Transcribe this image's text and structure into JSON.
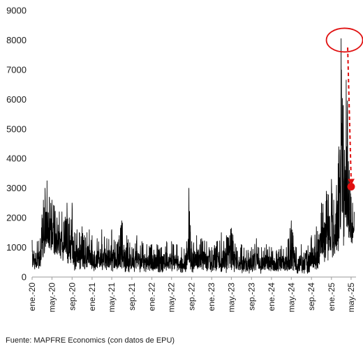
{
  "chart_data": {
    "type": "line",
    "title": "",
    "xlabel": "",
    "ylabel": "",
    "ylim": [
      0,
      9000
    ],
    "yticks": [
      0,
      1000,
      2000,
      3000,
      4000,
      5000,
      6000,
      7000,
      8000,
      9000
    ],
    "xlim": [
      "2020-01-01",
      "2025-05-31"
    ],
    "xticks": [
      {
        "label": "ene.-20",
        "date": "2020-01-01"
      },
      {
        "label": "may.-20",
        "date": "2020-05-01"
      },
      {
        "label": "sep.-20",
        "date": "2020-09-01"
      },
      {
        "label": "ene.-21",
        "date": "2021-01-01"
      },
      {
        "label": "may.-21",
        "date": "2021-05-01"
      },
      {
        "label": "sep.-21",
        "date": "2021-09-01"
      },
      {
        "label": "ene.-22",
        "date": "2022-01-01"
      },
      {
        "label": "may.-22",
        "date": "2022-05-01"
      },
      {
        "label": "sep.-22",
        "date": "2022-09-01"
      },
      {
        "label": "ene.-23",
        "date": "2023-01-01"
      },
      {
        "label": "may.-23",
        "date": "2023-05-01"
      },
      {
        "label": "sep.-23",
        "date": "2023-09-01"
      },
      {
        "label": "ene.-24",
        "date": "2024-01-01"
      },
      {
        "label": "may.-24",
        "date": "2024-05-01"
      },
      {
        "label": "sep.-24",
        "date": "2024-09-01"
      },
      {
        "label": "ene.-25",
        "date": "2025-01-01"
      },
      {
        "label": "may.-25",
        "date": "2025-05-01"
      }
    ],
    "grid": false,
    "legend": "none",
    "series_color": "#000000",
    "series": [
      {
        "x": [
          "2020-01-01",
          "2020-02-01",
          "2020-02-20",
          "2020-03-01",
          "2020-03-10",
          "2020-03-20",
          "2020-04-01",
          "2020-04-15",
          "2020-05-01",
          "2020-05-15",
          "2020-06-01",
          "2020-06-15",
          "2020-07-01",
          "2020-07-15",
          "2020-08-01",
          "2020-08-15",
          "2020-09-01",
          "2020-09-15",
          "2020-10-01",
          "2020-10-15",
          "2020-11-01",
          "2020-11-15",
          "2020-12-01",
          "2020-12-15",
          "2021-01-01",
          "2021-02-01",
          "2021-03-01",
          "2021-04-01",
          "2021-05-01",
          "2021-06-01",
          "2021-07-01",
          "2021-08-01",
          "2021-09-01",
          "2021-10-01",
          "2021-11-01",
          "2021-12-01",
          "2022-01-01",
          "2022-02-01",
          "2022-03-01",
          "2022-04-01",
          "2022-05-01",
          "2022-06-01",
          "2022-07-01",
          "2022-08-01",
          "2022-08-15",
          "2022-09-01",
          "2022-10-01",
          "2022-11-01",
          "2022-12-01",
          "2023-01-01",
          "2023-02-01",
          "2023-03-01",
          "2023-04-01",
          "2023-05-01",
          "2023-06-01",
          "2023-07-01",
          "2023-08-01",
          "2023-09-01",
          "2023-10-01",
          "2023-11-01",
          "2023-12-01",
          "2024-01-01",
          "2024-02-01",
          "2024-03-01",
          "2024-04-01",
          "2024-05-01",
          "2024-06-01",
          "2024-07-01",
          "2024-08-01",
          "2024-09-01",
          "2024-10-01",
          "2024-11-01",
          "2024-12-01",
          "2025-01-01",
          "2025-01-15",
          "2025-02-01",
          "2025-02-15",
          "2025-03-01",
          "2025-03-15",
          "2025-04-01",
          "2025-04-05",
          "2025-04-09",
          "2025-04-15",
          "2025-04-20",
          "2025-05-01",
          "2025-05-10",
          "2025-05-20"
        ],
        "high": [
          1250,
          1200,
          1300,
          2100,
          2600,
          3000,
          3250,
          2700,
          2600,
          2400,
          2000,
          2200,
          2200,
          1900,
          2500,
          2000,
          2500,
          1500,
          1600,
          1500,
          1700,
          1400,
          1500,
          1600,
          1400,
          1300,
          1600,
          1300,
          1600,
          1100,
          1900,
          1400,
          1000,
          1400,
          1200,
          1100,
          1100,
          1100,
          1000,
          1200,
          1200,
          1100,
          1000,
          1200,
          3000,
          1200,
          1400,
          1300,
          1200,
          1000,
          1200,
          1500,
          1400,
          1650,
          1000,
          1100,
          900,
          1000,
          1300,
          1000,
          1100,
          1000,
          900,
          1050,
          1000,
          1900,
          1000,
          1100,
          900,
          1400,
          1700,
          2500,
          2900,
          3300,
          2600,
          3100,
          4400,
          8050,
          5800,
          6650,
          4400,
          5950,
          3900,
          3600,
          2700,
          2500,
          2200
        ],
        "low": [
          250,
          200,
          150,
          350,
          500,
          800,
          800,
          800,
          700,
          600,
          400,
          500,
          500,
          400,
          350,
          300,
          300,
          200,
          200,
          250,
          300,
          250,
          200,
          250,
          200,
          180,
          200,
          150,
          200,
          150,
          180,
          150,
          150,
          200,
          150,
          150,
          150,
          180,
          150,
          200,
          150,
          150,
          150,
          150,
          200,
          150,
          200,
          180,
          150,
          150,
          150,
          150,
          120,
          150,
          150,
          120,
          120,
          100,
          120,
          100,
          120,
          100,
          100,
          120,
          100,
          100,
          100,
          100,
          100,
          150,
          200,
          300,
          450,
          600,
          600,
          700,
          700,
          1000,
          1000,
          1200,
          1200,
          1100,
          1000,
          1000,
          950,
          950,
          950
        ]
      }
    ],
    "annotations": [
      {
        "type": "ellipse",
        "x": "2025-03-22",
        "y": 8000,
        "color": "#e01010"
      },
      {
        "type": "arrow",
        "from": {
          "x": "2025-04-10",
          "y": 7750
        },
        "to": {
          "x": "2025-05-02",
          "y": 3100
        },
        "style": "dashed",
        "color": "#e01010"
      },
      {
        "type": "point",
        "x": "2025-05-01",
        "y": 3050,
        "color": "#e01010"
      }
    ]
  },
  "source": "Fuente: MAPFRE Economics (con datos de EPU)"
}
